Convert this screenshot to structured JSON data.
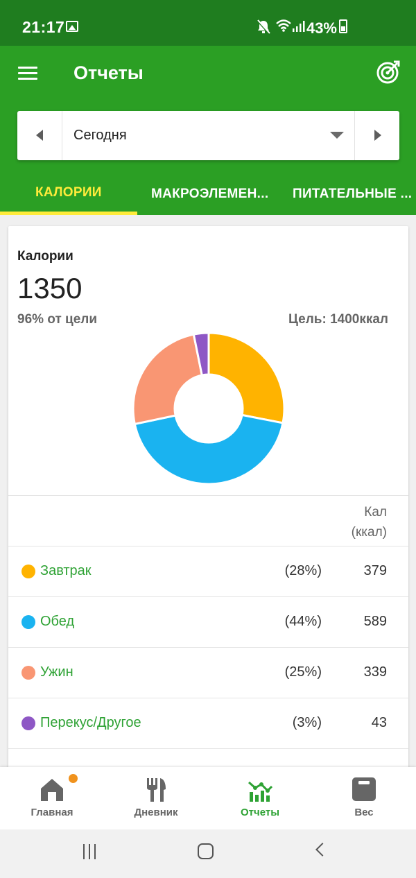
{
  "status_bar": {
    "time": "21:17",
    "battery": "43%"
  },
  "app_bar": {
    "title": "Отчеты"
  },
  "date_selector": {
    "value": "Сегодня"
  },
  "tabs": [
    {
      "label": "КАЛОРИИ",
      "active": true
    },
    {
      "label": "МАКРОЭЛЕМЕН...",
      "active": false
    },
    {
      "label": "ПИТАТЕЛЬНЫЕ ...",
      "active": false
    }
  ],
  "calories": {
    "title": "Калории",
    "value": "1350",
    "percent_of_goal": "96% от цели",
    "goal": "Цель: 1400ккал"
  },
  "chart_data": {
    "type": "pie",
    "categories": [
      "Завтрак",
      "Обед",
      "Ужин",
      "Перекус/Другое"
    ],
    "values": [
      379,
      589,
      339,
      43
    ],
    "colors": [
      "#ffb300",
      "#1ab3f0",
      "#f99673",
      "#8e57c5"
    ]
  },
  "table": {
    "header": [
      "Кал",
      "(ккал)"
    ],
    "rows": [
      {
        "name": "Завтрак",
        "pct": "(28%)",
        "value": "379",
        "color": "#ffb300"
      },
      {
        "name": "Обед",
        "pct": "(44%)",
        "value": "589",
        "color": "#1ab3f0"
      },
      {
        "name": "Ужин",
        "pct": "(25%)",
        "value": "339",
        "color": "#f99673"
      },
      {
        "name": "Перекус/Другое",
        "pct": "(3%)",
        "value": "43",
        "color": "#8e57c5"
      }
    ]
  },
  "bottom_nav": [
    {
      "label": "Главная",
      "icon": "home-icon",
      "active": false
    },
    {
      "label": "Дневник",
      "icon": "fork-knife-icon",
      "active": false
    },
    {
      "label": "Отчеты",
      "icon": "reports-chart-icon",
      "active": true
    },
    {
      "label": "Вес",
      "icon": "scale-icon",
      "active": false
    }
  ],
  "colors": {
    "status_bar": "#1f7d1f",
    "app_bar": "#2b9f24",
    "tab_active": "#ffeb3b",
    "accent_green": "#2ea234"
  }
}
